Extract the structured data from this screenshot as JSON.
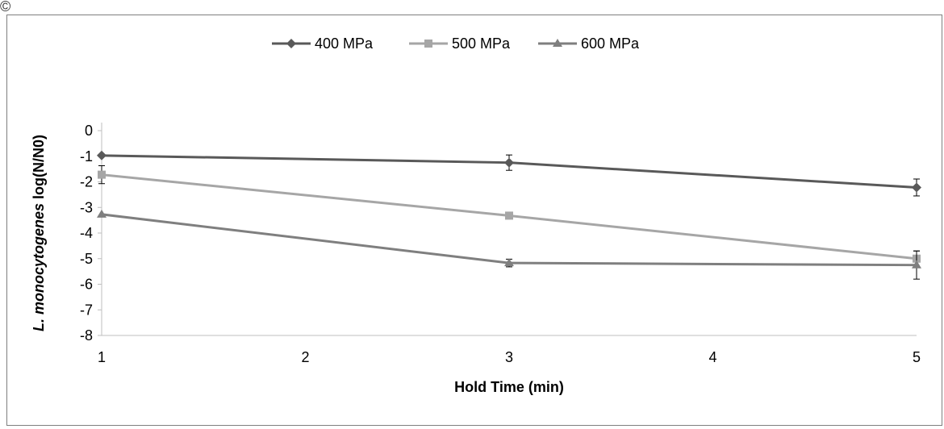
{
  "corner_mark": "©",
  "chart_data": {
    "type": "line",
    "title": "",
    "xlabel": "Hold Time (min)",
    "ylabel": {
      "italic_part": "L. monocytogenes",
      "normal_part": "log(N/N0)"
    },
    "xlim": [
      1,
      5
    ],
    "ylim": [
      -8,
      0
    ],
    "x_ticks": [
      1,
      2,
      3,
      4,
      5
    ],
    "y_ticks": [
      0,
      -1,
      -2,
      -3,
      -4,
      -5,
      -6,
      -7,
      -8
    ],
    "grid": false,
    "legend_position": "top",
    "x": [
      1,
      3,
      5
    ],
    "series": [
      {
        "name": "400 MPa",
        "values": [
          -0.97,
          -1.25,
          -2.22
        ],
        "errors": [
          0,
          0.3,
          0.33
        ],
        "color": "#595959",
        "marker": "diamond"
      },
      {
        "name": "500 MPa",
        "values": [
          -1.72,
          -3.32,
          -5.0
        ],
        "errors": [
          0.35,
          0,
          0.3
        ],
        "color": "#a6a6a6",
        "marker": "square"
      },
      {
        "name": "600 MPa",
        "values": [
          -3.27,
          -5.17,
          -5.25
        ],
        "errors": [
          0,
          0.15,
          0.55
        ],
        "color": "#7f7f7f",
        "marker": "triangle"
      }
    ]
  }
}
